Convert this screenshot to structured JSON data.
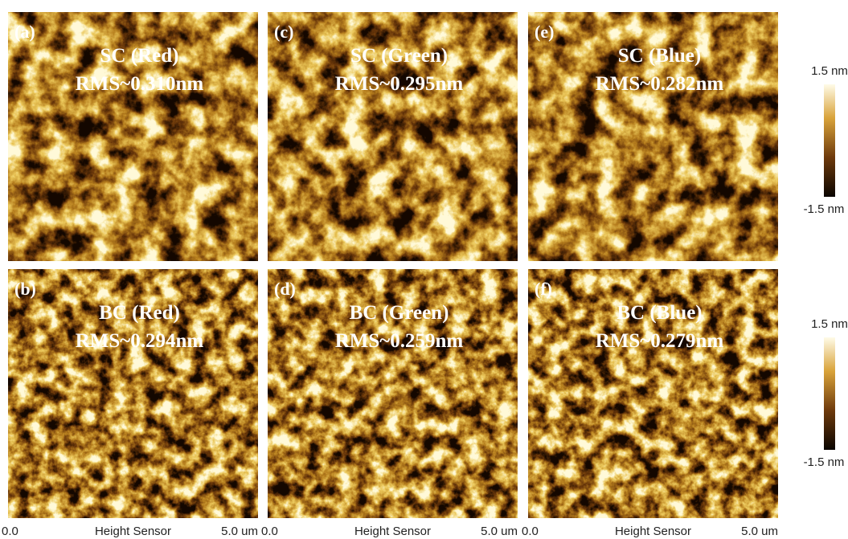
{
  "panels": [
    {
      "label": "(a)",
      "title": "SC (Red)",
      "rms": "RMS~0.310nm"
    },
    {
      "label": "(c)",
      "title": "SC (Green)",
      "rms": "RMS~0.295nm"
    },
    {
      "label": "(e)",
      "title": "SC (Blue)",
      "rms": "RMS~0.282nm"
    },
    {
      "label": "(b)",
      "title": "BC (Red)",
      "rms": "RMS~0.294nm"
    },
    {
      "label": "(d)",
      "title": "BC (Green)",
      "rms": "RMS~0.259nm"
    },
    {
      "label": "(f)",
      "title": "BC (Blue)",
      "rms": "RMS~0.279nm"
    }
  ],
  "axis_labels": [
    {
      "start": "0.0",
      "name": "Height Sensor",
      "end": "5.0 um"
    },
    {
      "start": "0.0",
      "name": "Height Sensor",
      "end": "5.0 um"
    },
    {
      "start": "0.0",
      "name": "Height Sensor",
      "end": "5.0 um"
    }
  ],
  "colorbars": [
    {
      "max": "1.5 nm",
      "min": "-1.5 nm"
    },
    {
      "max": "1.5 nm",
      "min": "-1.5 nm"
    }
  ]
}
